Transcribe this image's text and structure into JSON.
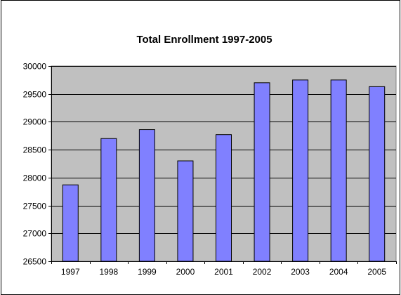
{
  "chart_data": {
    "type": "bar",
    "title": "Total Enrollment 1997-2005",
    "xlabel": "",
    "ylabel": "",
    "categories": [
      "1997",
      "1998",
      "1999",
      "2000",
      "2001",
      "2002",
      "2003",
      "2004",
      "2005"
    ],
    "values": [
      27870,
      28700,
      28860,
      28300,
      28770,
      29700,
      29750,
      29750,
      29630
    ],
    "ylim": [
      26500,
      30000
    ],
    "yticks": [
      26500,
      27000,
      27500,
      28000,
      28500,
      29000,
      29500,
      30000
    ],
    "ytick_labels": [
      "26500",
      "27000",
      "27500",
      "28000",
      "28500",
      "29000",
      "29500",
      "30000"
    ],
    "grid": true,
    "legend": "none",
    "colors": {
      "bar_fill": "#8080ff",
      "bar_stroke": "#000000",
      "plot_background": "#c0c0c0",
      "gridline": "#000000"
    }
  }
}
